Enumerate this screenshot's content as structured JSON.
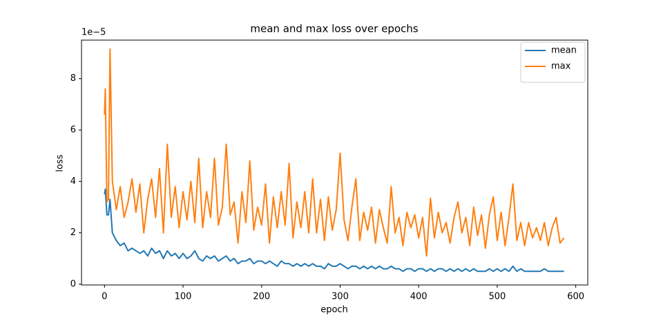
{
  "chart_data": {
    "type": "line",
    "title": "mean and max loss over epochs",
    "x_label": "epoch",
    "y_label": "loss",
    "y_offset_label": "1e−5",
    "x": [
      0,
      1,
      3,
      5,
      7,
      10,
      15,
      20,
      25,
      30,
      35,
      40,
      45,
      50,
      55,
      60,
      65,
      70,
      75,
      80,
      85,
      90,
      95,
      100,
      105,
      110,
      115,
      120,
      125,
      130,
      135,
      140,
      145,
      150,
      155,
      160,
      165,
      170,
      175,
      180,
      185,
      190,
      195,
      200,
      205,
      210,
      215,
      220,
      225,
      230,
      235,
      240,
      245,
      250,
      255,
      260,
      265,
      270,
      275,
      280,
      285,
      290,
      295,
      300,
      305,
      310,
      315,
      320,
      325,
      330,
      335,
      340,
      345,
      350,
      355,
      360,
      365,
      370,
      375,
      380,
      385,
      390,
      395,
      400,
      405,
      410,
      415,
      420,
      425,
      430,
      435,
      440,
      445,
      450,
      455,
      460,
      465,
      470,
      475,
      480,
      485,
      490,
      495,
      500,
      505,
      510,
      515,
      520,
      525,
      530,
      535,
      540,
      545,
      550,
      555,
      560,
      565,
      570,
      575,
      580,
      585
    ],
    "series": [
      {
        "name": "mean",
        "color": "#1f77b4",
        "values": [
          3.5,
          3.7,
          2.7,
          2.7,
          3.3,
          2.0,
          1.7,
          1.5,
          1.6,
          1.3,
          1.4,
          1.3,
          1.2,
          1.3,
          1.1,
          1.4,
          1.2,
          1.3,
          1.0,
          1.3,
          1.1,
          1.2,
          1.0,
          1.2,
          1.0,
          1.1,
          1.3,
          1.0,
          0.9,
          1.1,
          1.0,
          1.1,
          0.9,
          1.0,
          1.1,
          0.9,
          1.0,
          0.8,
          0.9,
          0.9,
          1.0,
          0.8,
          0.9,
          0.9,
          0.8,
          0.9,
          0.8,
          0.7,
          0.9,
          0.8,
          0.8,
          0.7,
          0.8,
          0.7,
          0.8,
          0.7,
          0.8,
          0.7,
          0.7,
          0.6,
          0.8,
          0.7,
          0.7,
          0.8,
          0.7,
          0.6,
          0.7,
          0.7,
          0.6,
          0.7,
          0.6,
          0.7,
          0.6,
          0.7,
          0.6,
          0.6,
          0.7,
          0.6,
          0.6,
          0.5,
          0.6,
          0.6,
          0.5,
          0.6,
          0.6,
          0.5,
          0.6,
          0.5,
          0.6,
          0.6,
          0.5,
          0.6,
          0.5,
          0.6,
          0.5,
          0.6,
          0.5,
          0.6,
          0.5,
          0.5,
          0.5,
          0.6,
          0.5,
          0.6,
          0.5,
          0.6,
          0.5,
          0.7,
          0.5,
          0.6,
          0.5,
          0.5,
          0.5,
          0.5,
          0.5,
          0.6,
          0.5,
          0.5,
          0.5,
          0.5,
          0.5
        ]
      },
      {
        "name": "max",
        "color": "#ff7f0e",
        "values": [
          6.6,
          7.6,
          3.2,
          3.3,
          9.15,
          4.0,
          2.9,
          3.8,
          2.6,
          3.2,
          4.1,
          2.8,
          3.9,
          2.0,
          3.3,
          4.1,
          2.6,
          4.5,
          2.0,
          5.45,
          2.6,
          3.8,
          2.2,
          3.6,
          2.5,
          4.0,
          2.4,
          4.9,
          2.2,
          3.6,
          2.6,
          4.9,
          2.3,
          3.0,
          5.45,
          2.7,
          3.2,
          1.6,
          3.6,
          2.4,
          4.8,
          2.1,
          3.0,
          2.3,
          3.9,
          1.6,
          3.4,
          2.2,
          3.6,
          2.3,
          4.7,
          1.8,
          3.2,
          2.2,
          3.6,
          2.0,
          4.1,
          2.0,
          3.3,
          1.7,
          3.4,
          2.1,
          2.9,
          5.1,
          2.5,
          1.7,
          3.0,
          4.1,
          1.7,
          2.8,
          2.1,
          3.0,
          1.6,
          2.9,
          2.2,
          1.6,
          3.8,
          2.0,
          2.6,
          1.5,
          2.8,
          2.2,
          2.7,
          1.8,
          2.6,
          1.1,
          3.35,
          1.8,
          2.8,
          2.0,
          2.4,
          1.6,
          2.6,
          3.2,
          2.0,
          2.6,
          1.5,
          3.0,
          1.9,
          2.7,
          1.4,
          2.7,
          3.4,
          1.7,
          2.8,
          1.5,
          2.6,
          3.9,
          1.7,
          2.4,
          1.5,
          2.4,
          1.8,
          2.2,
          1.7,
          2.4,
          1.5,
          2.2,
          2.6,
          1.6,
          1.8
        ]
      }
    ],
    "xlim": [
      -29.3,
      615.3
    ],
    "ylim": [
      -0.03,
      9.5
    ],
    "xticks": [
      0,
      100,
      200,
      300,
      400,
      500,
      600
    ],
    "yticks": [
      0,
      2,
      4,
      6,
      8
    ],
    "legend": "upper right"
  }
}
